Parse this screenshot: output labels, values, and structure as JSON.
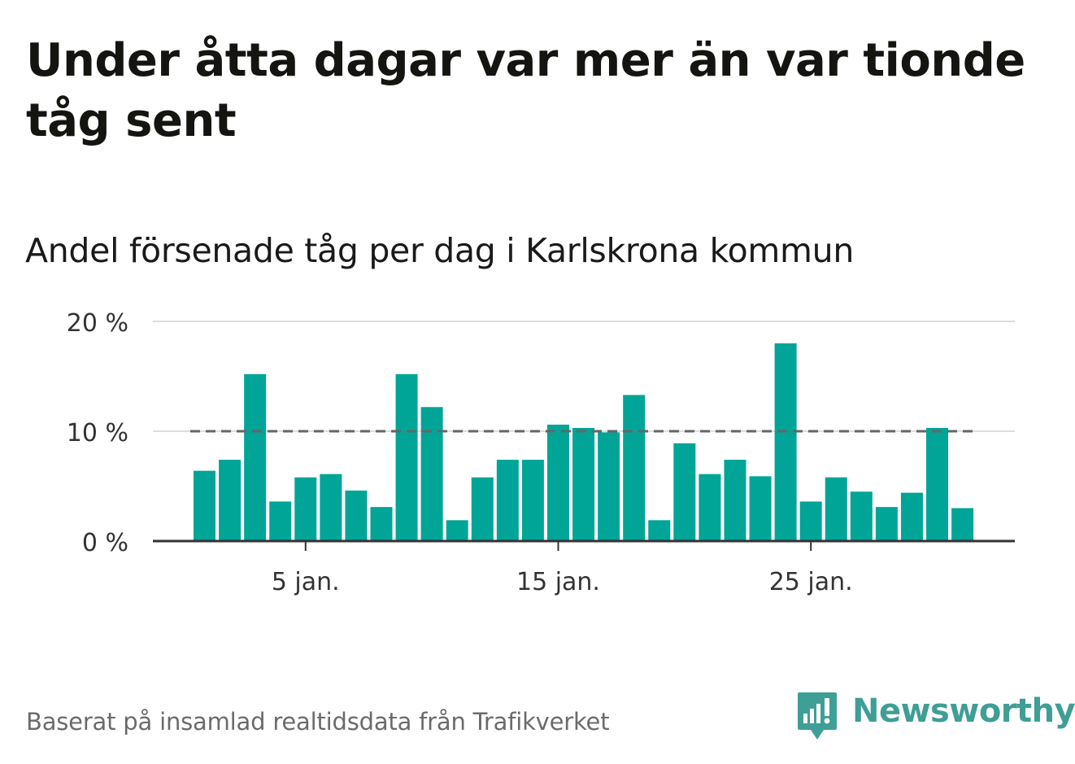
{
  "title": "Under åtta dagar var mer än var tionde tåg sent",
  "subtitle": "Andel försenade tåg per dag i Karlskrona kommun",
  "source": "Baserat på insamlad realtidsdata från Trafikverket",
  "brand": {
    "name": "Newsworthy",
    "icon": "newsworthy-logo-icon",
    "color": "#3f9e95"
  },
  "colors": {
    "bar": "#00a597",
    "reference_line": "#666666",
    "grid": "#dddddd",
    "axis": "#333333"
  },
  "chart_data": {
    "type": "bar",
    "categories": [
      "1 jan.",
      "2 jan.",
      "3 jan.",
      "4 jan.",
      "5 jan.",
      "6 jan.",
      "7 jan.",
      "8 jan.",
      "9 jan.",
      "10 jan.",
      "11 jan.",
      "12 jan.",
      "13 jan.",
      "14 jan.",
      "15 jan.",
      "16 jan.",
      "17 jan.",
      "18 jan.",
      "19 jan.",
      "20 jan.",
      "21 jan.",
      "22 jan.",
      "23 jan.",
      "24 jan.",
      "25 jan.",
      "26 jan.",
      "27 jan.",
      "28 jan.",
      "29 jan.",
      "30 jan.",
      "31 jan."
    ],
    "values": [
      6.4,
      7.4,
      15.2,
      3.6,
      5.8,
      6.1,
      4.6,
      3.1,
      15.2,
      12.2,
      1.9,
      5.8,
      7.4,
      7.4,
      10.6,
      10.3,
      9.9,
      13.3,
      1.9,
      8.9,
      6.1,
      7.4,
      5.9,
      18.0,
      3.6,
      5.8,
      4.5,
      3.1,
      4.4,
      10.3,
      3.0
    ],
    "ylim": [
      0,
      20
    ],
    "yticks": [
      0,
      10,
      20
    ],
    "ytick_labels": [
      "0 %",
      "10 %",
      "20 %"
    ],
    "xtick_labels": [
      {
        "index": 4,
        "label": "5 jan."
      },
      {
        "index": 14,
        "label": "15 jan."
      },
      {
        "index": 24,
        "label": "25 jan."
      }
    ],
    "reference_line": {
      "value": 10,
      "style": "dashed"
    },
    "grid": true,
    "legend": "none"
  }
}
